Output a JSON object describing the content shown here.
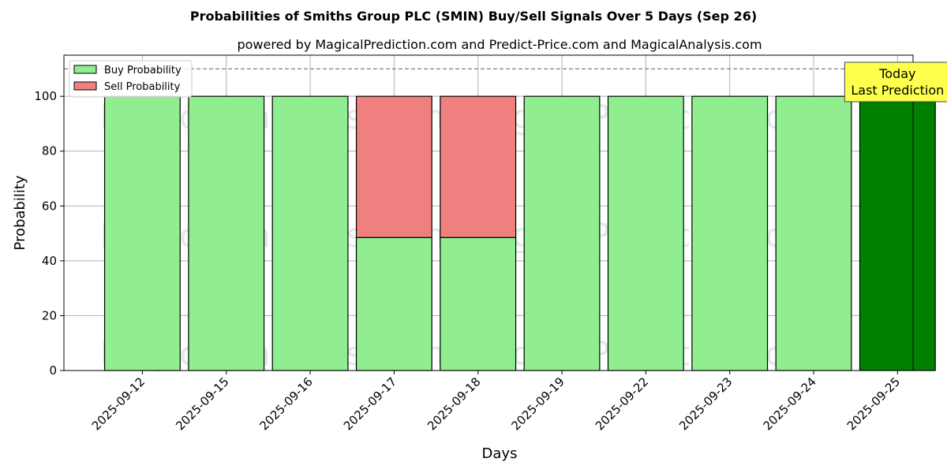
{
  "chart_data": {
    "type": "bar",
    "stacked": true,
    "title": "Probabilities of Smiths Group PLC (SMIN) Buy/Sell Signals Over 5 Days (Sep 26)",
    "subtitle": "powered by MagicalPrediction.com and Predict-Price.com and MagicalAnalysis.com",
    "xlabel": "Days",
    "ylabel": "Probability",
    "ylim": [
      0,
      115
    ],
    "yticks": [
      0,
      20,
      40,
      60,
      80,
      100
    ],
    "grid": true,
    "legend_position": "top-left",
    "reference_line": 110,
    "categories": [
      "2025-09-12",
      "2025-09-15",
      "2025-09-16",
      "2025-09-17",
      "2025-09-18",
      "2025-09-19",
      "2025-09-22",
      "2025-09-23",
      "2025-09-24",
      "2025-09-25"
    ],
    "series": [
      {
        "name": "Buy Probability",
        "color": "#90ee90",
        "values": [
          100,
          100,
          100,
          48.5,
          48.5,
          100,
          100,
          100,
          100,
          100
        ]
      },
      {
        "name": "Sell Probability",
        "color": "#f08080",
        "values": [
          0,
          0,
          0,
          51.5,
          51.5,
          0,
          0,
          0,
          0,
          0
        ]
      }
    ],
    "highlight": {
      "index": 9,
      "color": "#008000"
    },
    "annotation": {
      "lines": [
        "Today",
        "Last Prediction"
      ],
      "background": "#ffff4d"
    },
    "watermarks": [
      "MagicalAnalysis.com",
      "MagicalPrediction.com"
    ]
  }
}
